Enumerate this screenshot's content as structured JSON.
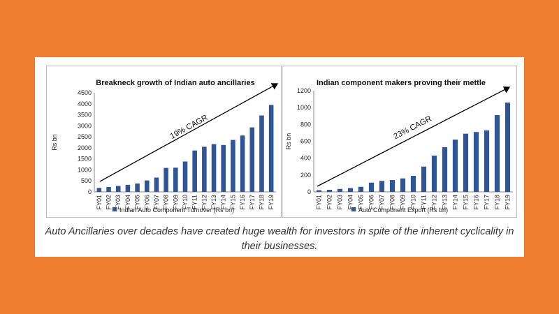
{
  "caption": "Auto Ancillaries over decades have created huge wealth for investors in spite of the inherent cyclicality in their businesses.",
  "colors": {
    "background": "#EE7D2F",
    "bar": "#2F5597",
    "divider": "#2e8b3a"
  },
  "chart_data": [
    {
      "type": "bar",
      "title": "Breakneck growth of Indian auto ancillaries",
      "ylabel": "Rs bn",
      "xlabel": "",
      "ylim": [
        0,
        4500
      ],
      "yticks": [
        "0",
        "500",
        "1000",
        "1500",
        "2000",
        "2500",
        "3000",
        "3500",
        "4000",
        "4500"
      ],
      "categories": [
        "FY01",
        "FY02",
        "FY03",
        "FY04",
        "FY05",
        "FY06",
        "FY07",
        "FY08",
        "FY09",
        "FY10",
        "FY11",
        "FY12",
        "FY13",
        "FY14",
        "FY15",
        "FY16",
        "FY17",
        "FY18",
        "FY19"
      ],
      "series": [
        {
          "name": "Indian Auto Component Turnover (Rs bn)",
          "values": [
            180,
            220,
            270,
            320,
            380,
            520,
            650,
            1090,
            1100,
            1380,
            1880,
            2050,
            2170,
            2130,
            2360,
            2560,
            2930,
            3470,
            3950
          ]
        }
      ],
      "annotation": "19% CAGR",
      "legend": "bottom"
    },
    {
      "type": "bar",
      "title": "Indian component makers proving their mettle",
      "ylabel": "Rs bn",
      "xlabel": "",
      "ylim": [
        0,
        1200
      ],
      "yticks": [
        "0",
        "200",
        "400",
        "600",
        "800",
        "1000",
        "1200"
      ],
      "categories": [
        "FY01",
        "FY02",
        "FY03",
        "FY04",
        "FY05",
        "FY06",
        "FY07",
        "FY08",
        "FY09",
        "FY10",
        "FY11",
        "FY12",
        "FY13",
        "FY14",
        "FY15",
        "FY16",
        "FY17",
        "FY18",
        "FY19"
      ],
      "series": [
        {
          "name": "Auto Component Export (Rs bn)",
          "values": [
            20,
            25,
            35,
            45,
            60,
            110,
            130,
            140,
            160,
            190,
            300,
            430,
            530,
            620,
            690,
            710,
            730,
            910,
            1060
          ]
        }
      ],
      "annotation": "23% CAGR",
      "legend": "bottom"
    }
  ]
}
